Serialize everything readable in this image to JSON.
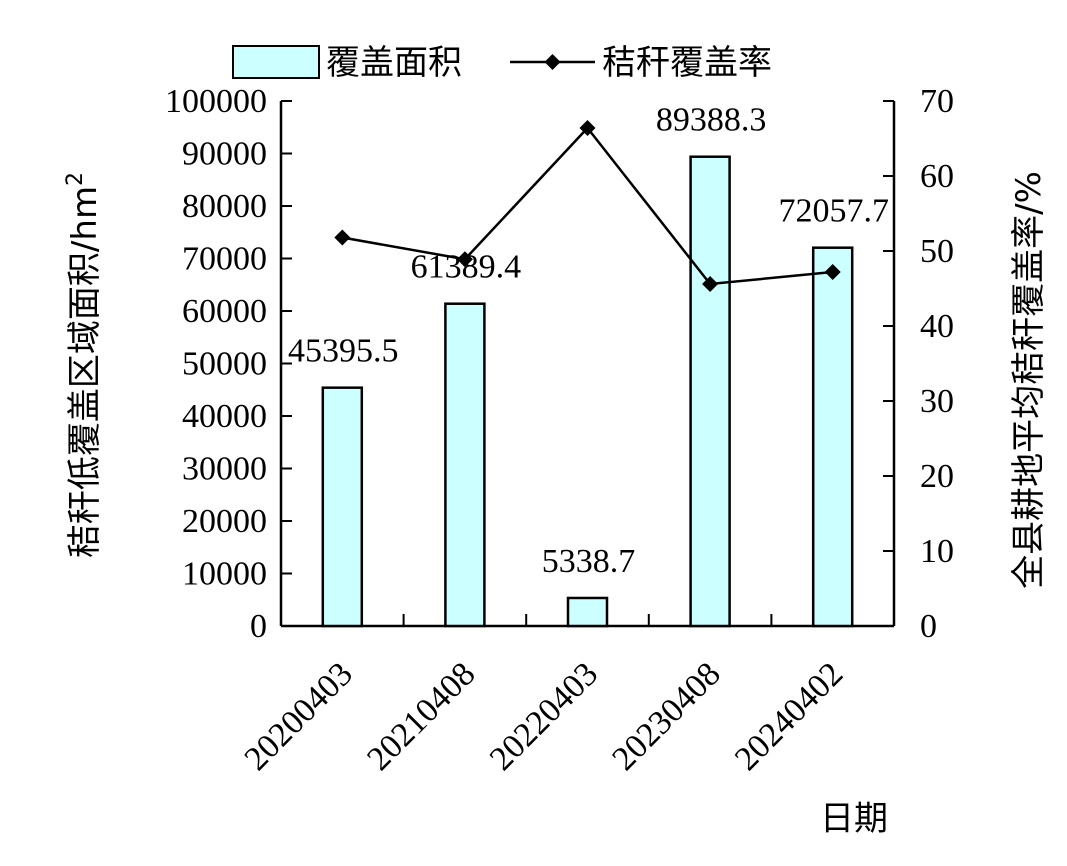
{
  "chart_data": {
    "type": "bar",
    "categories": [
      "20200403",
      "20210408",
      "20220403",
      "20230408",
      "20240402"
    ],
    "series": [
      {
        "name": "覆盖面积",
        "type": "bar",
        "axis": "left",
        "values": [
          45395.5,
          61389.4,
          5338.7,
          89388.3,
          72057.7
        ],
        "labels": [
          "45395.5",
          "61389.4",
          "5338.7",
          "89388.3",
          "72057.7"
        ],
        "color": "#ccffff"
      },
      {
        "name": "秸秆覆盖率",
        "type": "line",
        "axis": "right",
        "values": [
          51.8,
          48.9,
          66.4,
          45.6,
          47.2
        ],
        "color": "#000000"
      }
    ],
    "xlabel": "日期",
    "ylabel_left": "秸秆低覆盖区域面积/hm",
    "ylabel_left_sup": "2",
    "ylabel_right": "全县耕地平均秸秆覆盖率/%",
    "ylim_left": [
      0,
      100000
    ],
    "yticks_left": [
      "0",
      "10000",
      "20000",
      "30000",
      "40000",
      "50000",
      "60000",
      "70000",
      "80000",
      "90000",
      "100000"
    ],
    "ylim_right": [
      0,
      70
    ],
    "yticks_right": [
      "0",
      "10",
      "20",
      "30",
      "40",
      "50",
      "60",
      "70"
    ],
    "legend_position": "top",
    "grid": false
  }
}
